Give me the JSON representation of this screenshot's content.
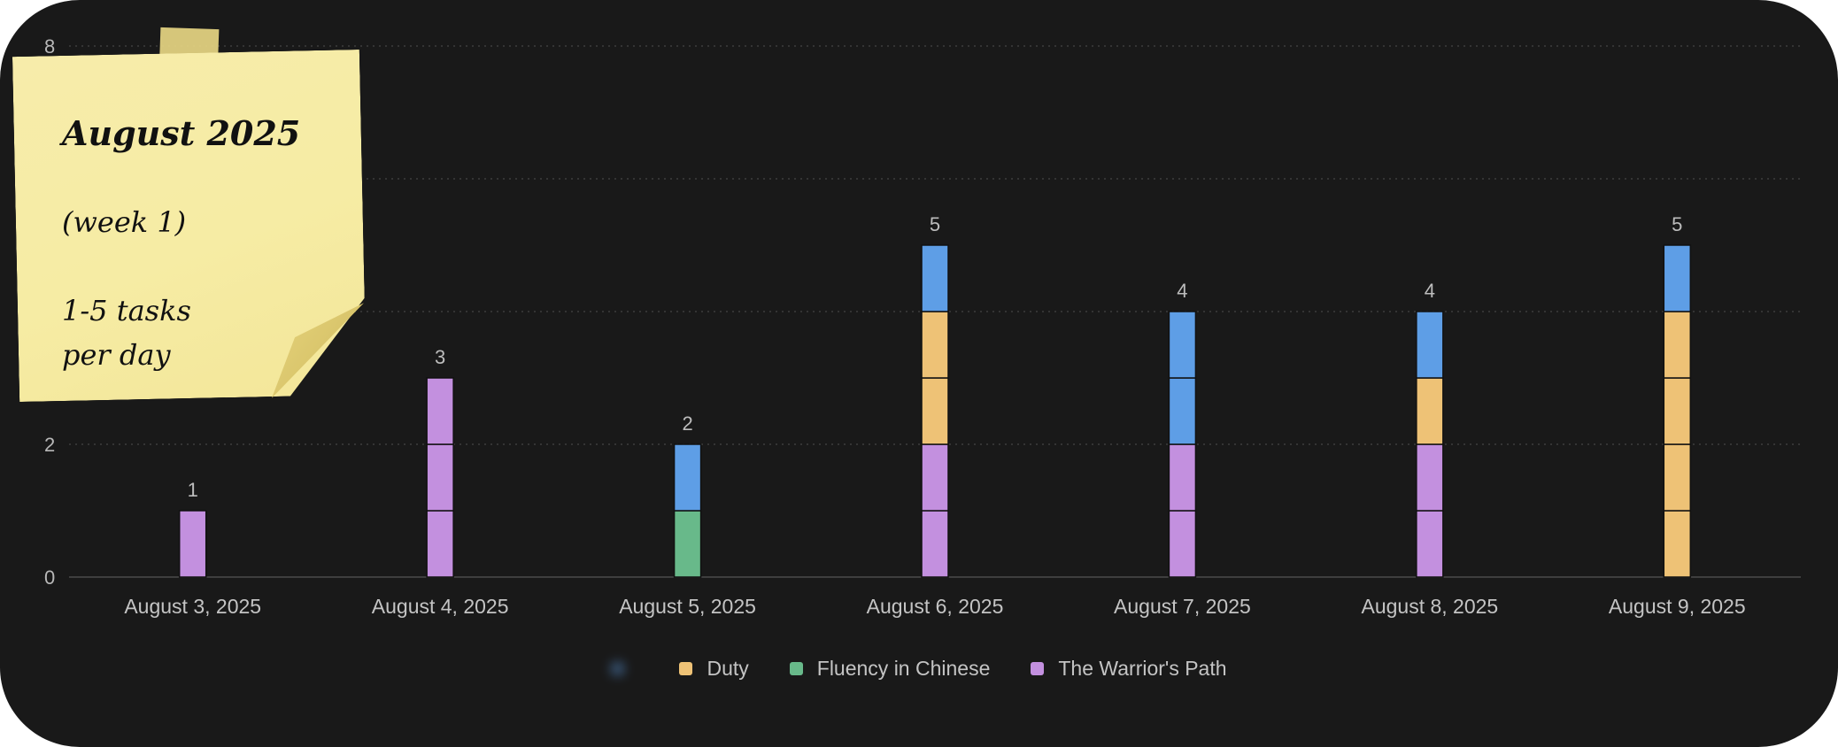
{
  "note": {
    "title": "August 2025",
    "week": "(week 1)",
    "tasks_line1": "1-5 tasks",
    "tasks_line2": "per day"
  },
  "chart_data": {
    "type": "bar",
    "stacked": true,
    "categories": [
      "August 3, 2025",
      "August 4, 2025",
      "August 5, 2025",
      "August 6, 2025",
      "August 7, 2025",
      "August 8, 2025",
      "August 9, 2025"
    ],
    "y_ticks": [
      0,
      2,
      8
    ],
    "ylim": [
      0,
      8
    ],
    "grid": true,
    "legend_placement": "bottom",
    "totals": [
      1,
      3,
      2,
      5,
      4,
      4,
      5
    ],
    "series": [
      {
        "name": "The Warrior's Path",
        "color": "#c390df",
        "values": [
          1,
          3,
          0,
          2,
          2,
          2,
          0
        ]
      },
      {
        "name": "Fluency in Chinese",
        "color": "#68b98a",
        "values": [
          0,
          0,
          1,
          0,
          0,
          0,
          0
        ]
      },
      {
        "name": "Duty",
        "color": "#eec276",
        "values": [
          0,
          0,
          0,
          2,
          0,
          1,
          4
        ]
      },
      {
        "name": "",
        "color": "#5e9ee6",
        "values": [
          0,
          0,
          1,
          1,
          2,
          1,
          1
        ]
      }
    ],
    "legend": [
      {
        "label": "",
        "color": "#5e9ee6",
        "blurred": true
      },
      {
        "label": "Duty",
        "color": "#eec276"
      },
      {
        "label": "Fluency in Chinese",
        "color": "#68b98a"
      },
      {
        "label": "The Warrior's Path",
        "color": "#c390df"
      }
    ]
  }
}
